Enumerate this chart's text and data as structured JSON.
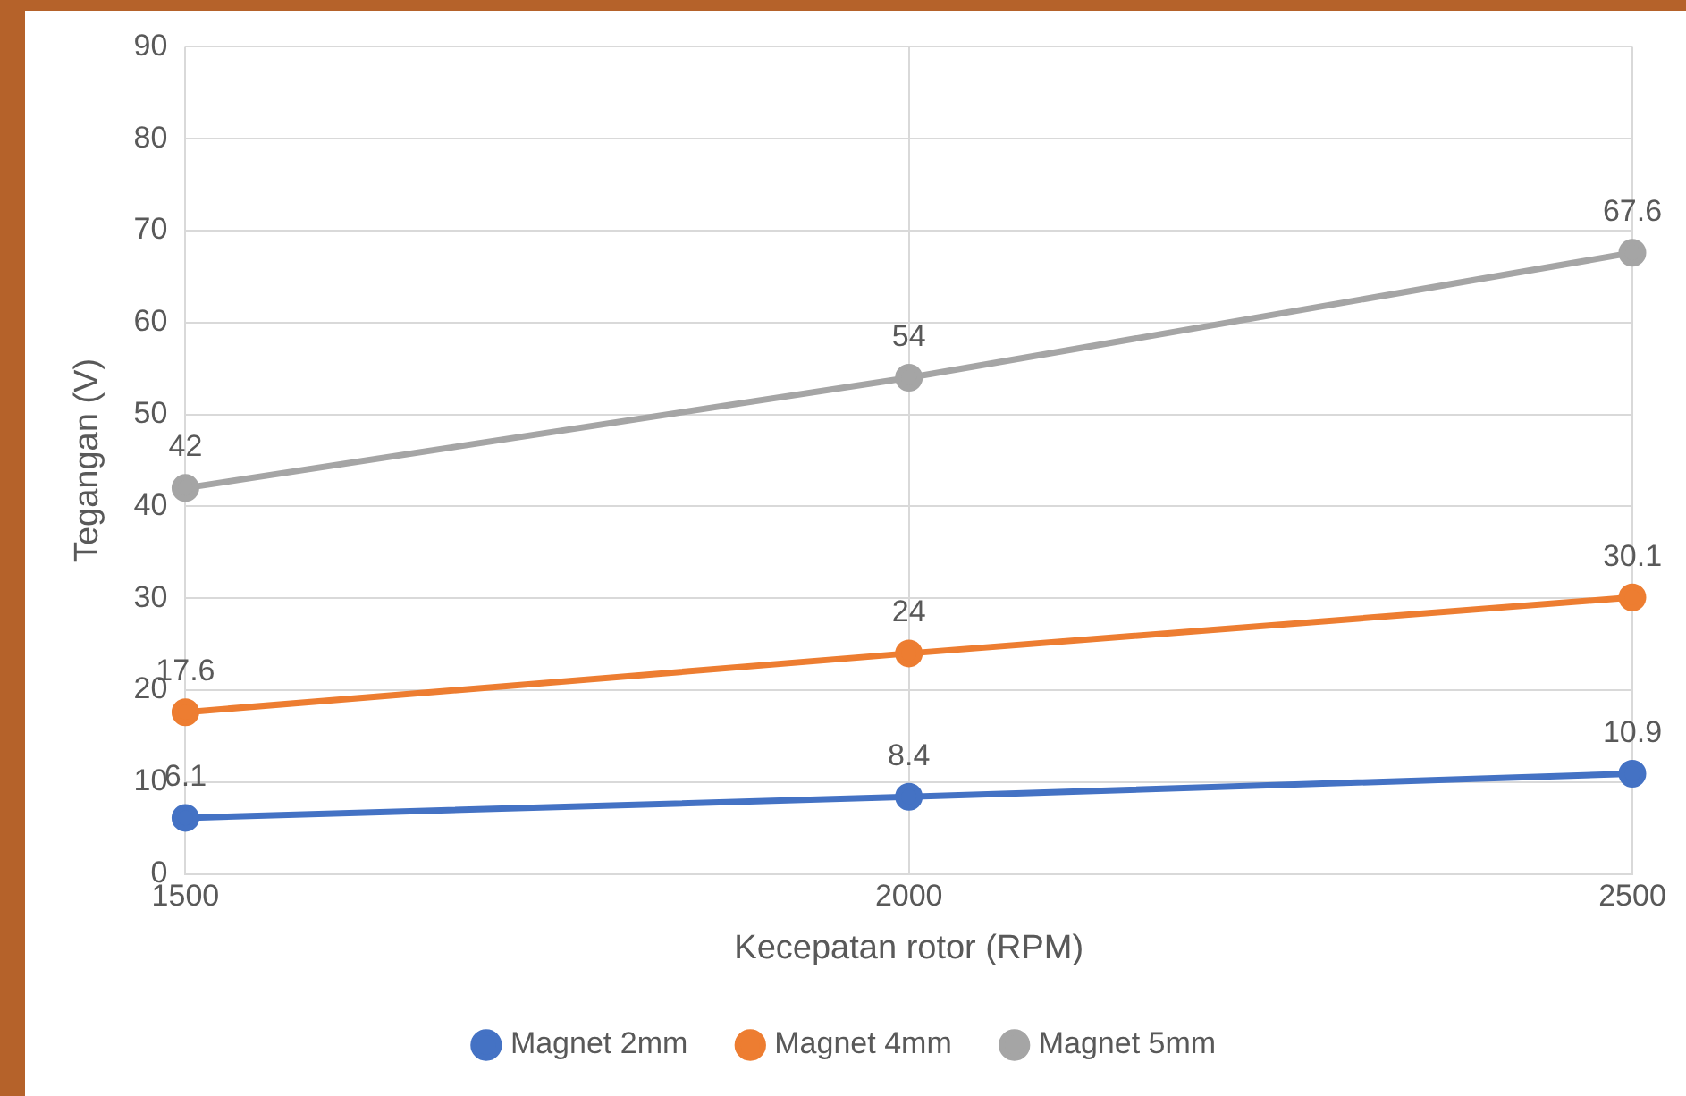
{
  "chart_data": {
    "type": "line",
    "xlabel": "Kecepatan rotor (RPM)",
    "ylabel": "Tegangan (V)",
    "x": [
      1500,
      2000,
      2500
    ],
    "series": [
      {
        "name": "Magnet 2mm",
        "color": "#4472c4",
        "values": [
          6.1,
          8.4,
          10.9
        ]
      },
      {
        "name": "Magnet 4mm",
        "color": "#ed7d31",
        "values": [
          17.6,
          24,
          30.1
        ]
      },
      {
        "name": "Magnet 5mm",
        "color": "#a5a5a5",
        "values": [
          42,
          54,
          67.6
        ]
      }
    ],
    "xlim": [
      1500,
      2500
    ],
    "xticks": [
      1500,
      2000,
      2500
    ],
    "ylim": [
      0,
      90
    ],
    "yticks": [
      0,
      10,
      20,
      30,
      40,
      50,
      60,
      70,
      80,
      90
    ],
    "grid": true,
    "legend": "bottom",
    "marker": "circle",
    "line_style": "solid",
    "data_labels": true
  }
}
